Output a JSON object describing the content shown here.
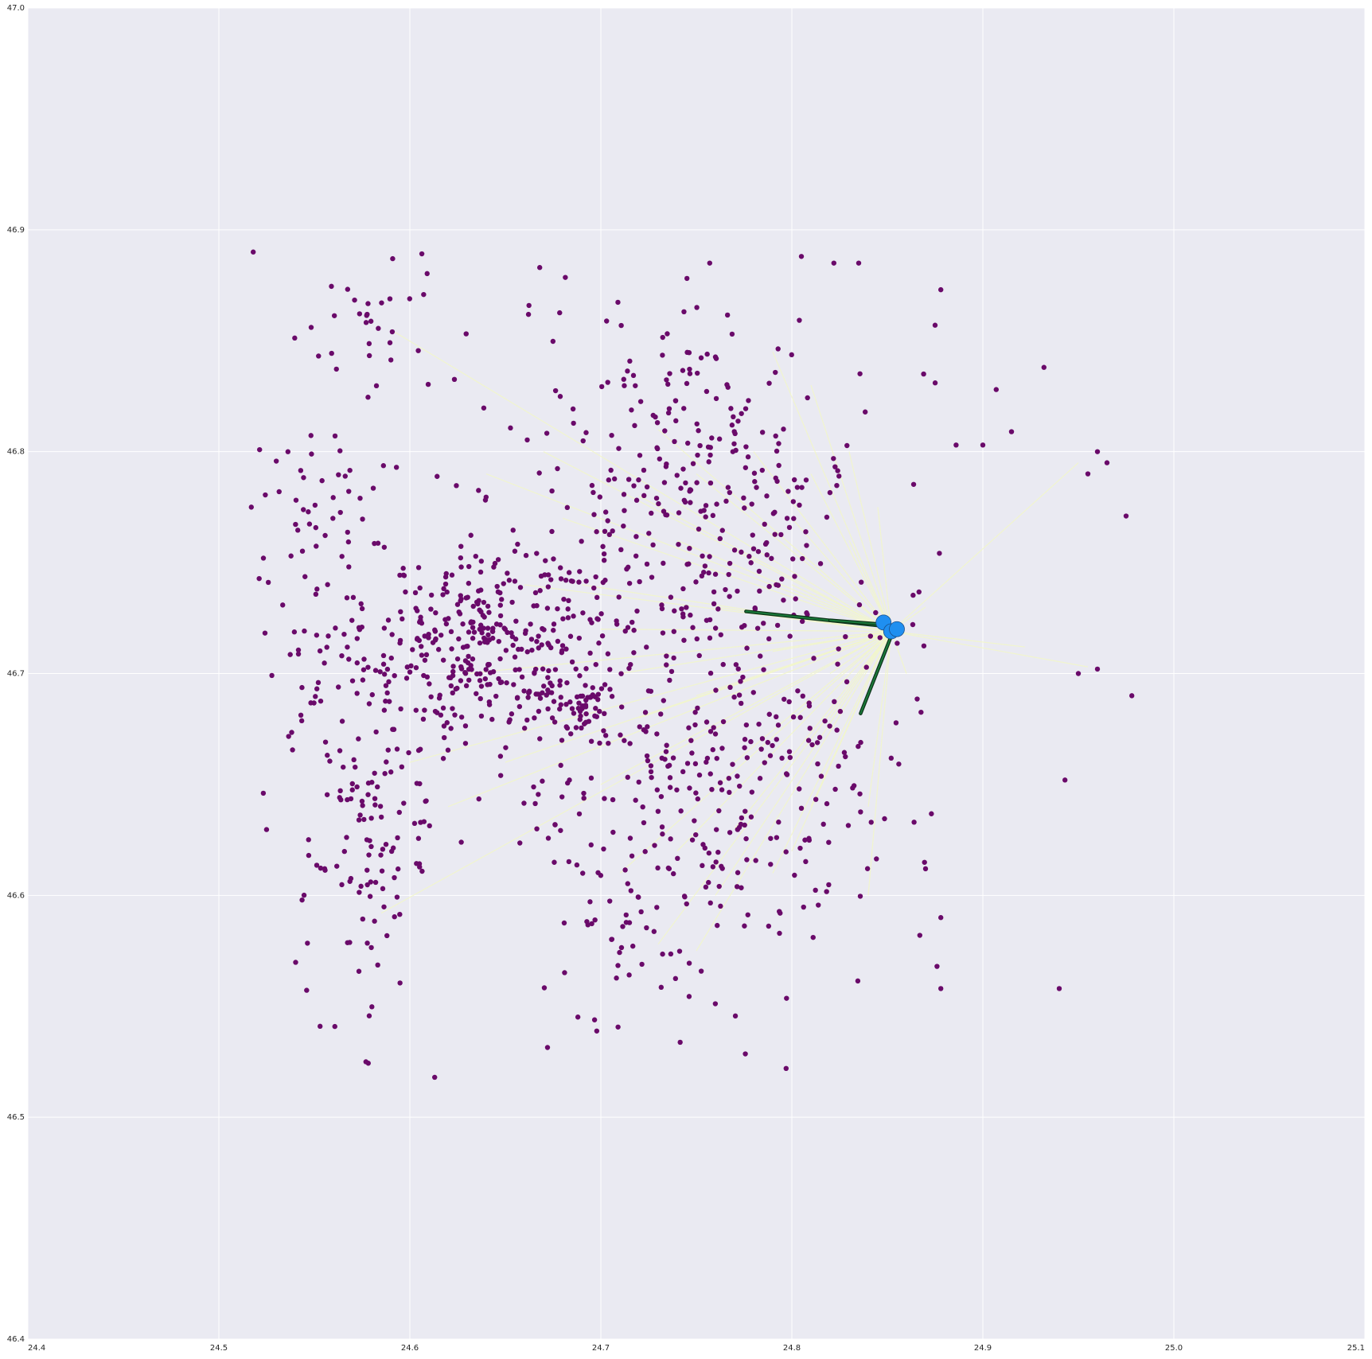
{
  "chart_data": {
    "type": "scatter",
    "title": "",
    "xlabel": "",
    "ylabel": "",
    "xlim": [
      24.4,
      25.1
    ],
    "ylim": [
      46.4,
      47.0
    ],
    "grid": true,
    "x_ticks": [
      24.4,
      24.5,
      24.6,
      24.7,
      24.8,
      24.9,
      25.0,
      25.1
    ],
    "y_ticks": [
      46.4,
      46.5,
      46.6,
      46.7,
      46.8,
      46.9,
      47.0
    ],
    "x_tick_labels": [
      "24.4",
      "24.5",
      "24.6",
      "24.7",
      "24.8",
      "24.9",
      "25.0",
      "25.1"
    ],
    "y_tick_labels": [
      "46.4",
      "46.5",
      "46.6",
      "46.7",
      "46.8",
      "46.9",
      "47.0"
    ],
    "colors": {
      "background": "#eaeaf2",
      "grid": "#ffffff",
      "points": "#6a0a6a",
      "hubs": "#1f8ff0",
      "hub_edge": "#1a4f8a",
      "weak_links": "#f2f7c8",
      "strong_links": "#1a7a3a",
      "strong_outline": "#0d3319"
    },
    "hubs": [
      {
        "x": 24.848,
        "y": 46.723
      },
      {
        "x": 24.852,
        "y": 46.719
      },
      {
        "x": 24.855,
        "y": 46.72
      }
    ],
    "strong_links": [
      {
        "from": [
          24.852,
          46.721
        ],
        "to": [
          24.776,
          46.728
        ]
      },
      {
        "from": [
          24.853,
          46.719
        ],
        "to": [
          24.836,
          46.682
        ]
      },
      {
        "from": [
          24.85,
          46.722
        ],
        "to": [
          24.82,
          46.724
        ]
      }
    ],
    "weak_link_targets": [
      [
        24.585,
        46.592
      ],
      [
        24.59,
        46.855
      ],
      [
        24.75,
        46.575
      ],
      [
        24.73,
        46.578
      ],
      [
        24.95,
        46.795
      ],
      [
        24.955,
        46.703
      ],
      [
        24.922,
        46.712
      ],
      [
        24.845,
        46.775
      ],
      [
        24.79,
        46.845
      ],
      [
        24.81,
        46.83
      ],
      [
        24.7,
        46.72
      ],
      [
        24.72,
        46.68
      ],
      [
        24.65,
        46.66
      ],
      [
        24.76,
        46.6
      ],
      [
        24.8,
        46.62
      ],
      [
        24.84,
        46.64
      ],
      [
        24.78,
        46.8
      ],
      [
        24.72,
        46.78
      ],
      [
        24.74,
        46.76
      ],
      [
        24.68,
        46.77
      ],
      [
        24.66,
        46.74
      ],
      [
        24.63,
        46.7
      ],
      [
        24.7,
        46.65
      ],
      [
        24.77,
        46.66
      ],
      [
        24.82,
        46.68
      ],
      [
        24.83,
        46.76
      ],
      [
        24.81,
        46.79
      ],
      [
        24.76,
        46.73
      ],
      [
        24.79,
        46.71
      ],
      [
        24.75,
        46.69
      ],
      [
        24.71,
        46.7
      ],
      [
        24.69,
        46.74
      ],
      [
        24.73,
        46.81
      ],
      [
        24.8,
        46.74
      ],
      [
        24.82,
        46.7
      ],
      [
        24.6,
        46.66
      ],
      [
        24.62,
        46.64
      ],
      [
        24.87,
        46.73
      ],
      [
        24.86,
        46.7
      ],
      [
        24.84,
        46.6
      ],
      [
        24.81,
        46.64
      ],
      [
        24.79,
        46.61
      ],
      [
        24.77,
        46.63
      ],
      [
        24.74,
        46.62
      ],
      [
        24.71,
        46.61
      ],
      [
        24.83,
        46.8
      ],
      [
        24.8,
        46.77
      ],
      [
        24.75,
        46.79
      ],
      [
        24.67,
        46.8
      ],
      [
        24.64,
        46.79
      ]
    ],
    "clusters": [
      {
        "cx": 24.64,
        "cy": 46.715,
        "sx": 0.03,
        "sy": 0.025,
        "n": 330
      },
      {
        "cx": 24.745,
        "cy": 46.79,
        "sx": 0.045,
        "sy": 0.04,
        "n": 260
      },
      {
        "cx": 24.74,
        "cy": 46.67,
        "sx": 0.045,
        "sy": 0.045,
        "n": 260
      },
      {
        "cx": 24.58,
        "cy": 46.63,
        "sx": 0.018,
        "sy": 0.045,
        "n": 130
      },
      {
        "cx": 24.56,
        "cy": 46.74,
        "sx": 0.025,
        "sy": 0.05,
        "n": 110
      },
      {
        "cx": 24.8,
        "cy": 46.69,
        "sx": 0.035,
        "sy": 0.06,
        "n": 130
      },
      {
        "cx": 24.58,
        "cy": 46.86,
        "sx": 0.02,
        "sy": 0.02,
        "n": 25
      },
      {
        "cx": 24.69,
        "cy": 46.685,
        "sx": 0.008,
        "sy": 0.006,
        "n": 40
      },
      {
        "cx": 24.73,
        "cy": 46.58,
        "sx": 0.03,
        "sy": 0.03,
        "n": 50
      }
    ],
    "outliers": [
      [
        24.518,
        46.89
      ],
      [
        24.517,
        46.775
      ],
      [
        24.96,
        46.8
      ],
      [
        24.965,
        46.795
      ],
      [
        24.955,
        46.79
      ],
      [
        24.975,
        46.771
      ],
      [
        24.978,
        46.69
      ],
      [
        24.95,
        46.7
      ],
      [
        24.96,
        46.702
      ],
      [
        24.943,
        46.652
      ],
      [
        24.94,
        46.558
      ],
      [
        24.932,
        46.838
      ],
      [
        24.915,
        46.809
      ],
      [
        24.907,
        46.828
      ],
      [
        24.9,
        46.803
      ],
      [
        24.886,
        46.803
      ],
      [
        24.878,
        46.873
      ],
      [
        24.875,
        46.857
      ],
      [
        24.869,
        46.835
      ],
      [
        24.878,
        46.59
      ],
      [
        24.87,
        46.612
      ],
      [
        24.867,
        46.582
      ],
      [
        24.876,
        46.568
      ],
      [
        24.864,
        46.633
      ],
      [
        24.878,
        46.558
      ],
      [
        24.797,
        46.522
      ],
      [
        24.613,
        46.518
      ],
      [
        24.577,
        46.525
      ],
      [
        24.553,
        46.541
      ],
      [
        24.591,
        46.887
      ],
      [
        24.805,
        46.888
      ],
      [
        24.822,
        46.885
      ],
      [
        24.835,
        46.885
      ],
      [
        24.757,
        46.885
      ],
      [
        24.668,
        46.883
      ]
    ]
  }
}
